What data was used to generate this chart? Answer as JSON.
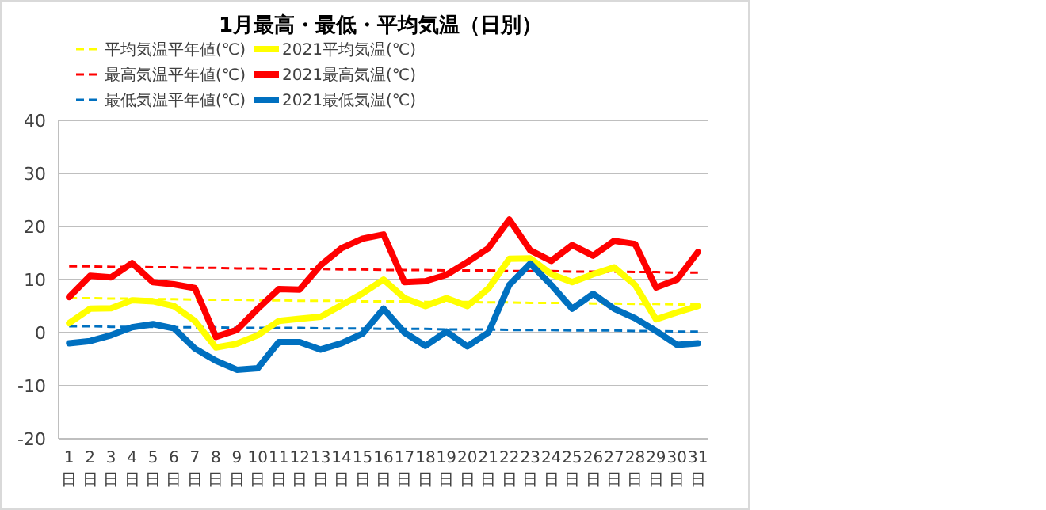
{
  "chart_data": {
    "type": "line",
    "title": "1月最高・最低・平均気温（日別）",
    "categories": [
      "1日",
      "2日",
      "3日",
      "4日",
      "5日",
      "6日",
      "7日",
      "8日",
      "9日",
      "10日",
      "11日",
      "12日",
      "13日",
      "14日",
      "15日",
      "16日",
      "17日",
      "18日",
      "19日",
      "20日",
      "21日",
      "22日",
      "23日",
      "24日",
      "25日",
      "26日",
      "27日",
      "28日",
      "29日",
      "30日",
      "31日"
    ],
    "series": [
      {
        "name": "平均気温平年値(℃)",
        "color": "#ffff00",
        "line_style": "dashed",
        "values": [
          6.5,
          6.5,
          6.4,
          6.4,
          6.3,
          6.3,
          6.2,
          6.2,
          6.2,
          6.1,
          6.1,
          6.0,
          6.0,
          6.0,
          5.9,
          5.9,
          5.9,
          5.8,
          5.8,
          5.8,
          5.7,
          5.7,
          5.6,
          5.6,
          5.6,
          5.5,
          5.5,
          5.4,
          5.4,
          5.3,
          5.3
        ]
      },
      {
        "name": "最高気温平年値(℃)",
        "color": "#ff0000",
        "line_style": "dashed",
        "values": [
          12.5,
          12.5,
          12.4,
          12.4,
          12.3,
          12.3,
          12.2,
          12.2,
          12.1,
          12.1,
          12.0,
          12.0,
          12.0,
          11.9,
          11.9,
          11.8,
          11.8,
          11.8,
          11.7,
          11.7,
          11.7,
          11.6,
          11.6,
          11.6,
          11.5,
          11.5,
          11.5,
          11.4,
          11.4,
          11.3,
          11.3
        ]
      },
      {
        "name": "最低気温平年値(℃)",
        "color": "#0070c0",
        "line_style": "dashed",
        "values": [
          1.2,
          1.2,
          1.1,
          1.1,
          1.1,
          1.0,
          1.0,
          1.0,
          0.9,
          0.9,
          0.9,
          0.9,
          0.8,
          0.8,
          0.8,
          0.7,
          0.7,
          0.7,
          0.6,
          0.6,
          0.6,
          0.5,
          0.5,
          0.5,
          0.4,
          0.4,
          0.4,
          0.3,
          0.3,
          0.2,
          0.2
        ]
      },
      {
        "name": "2021平均気温(℃)",
        "color": "#ffff00",
        "line_style": "solid",
        "values": [
          1.8,
          4.5,
          4.6,
          6.1,
          5.9,
          5.0,
          2.2,
          -2.8,
          -2.1,
          -0.5,
          2.2,
          2.6,
          3.0,
          5.2,
          7.4,
          10.0,
          6.5,
          5.0,
          6.5,
          5.0,
          8.3,
          13.9,
          14.0,
          11.0,
          9.5,
          11.0,
          12.3,
          9.0,
          2.5,
          3.8,
          5.0
        ]
      },
      {
        "name": "2021最高気温(℃)",
        "color": "#ff0000",
        "line_style": "solid",
        "values": [
          6.7,
          10.7,
          10.4,
          13.1,
          9.5,
          9.1,
          8.4,
          -0.8,
          0.5,
          4.5,
          8.2,
          8.1,
          12.7,
          15.9,
          17.7,
          18.5,
          9.5,
          9.7,
          10.9,
          13.3,
          15.9,
          21.3,
          15.5,
          13.5,
          16.5,
          14.5,
          17.3,
          16.7,
          8.5,
          10.0,
          15.2
        ]
      },
      {
        "name": "2021最低気温(℃)",
        "color": "#0070c0",
        "line_style": "solid",
        "values": [
          -2.0,
          -1.6,
          -0.5,
          1.0,
          1.6,
          0.8,
          -3.0,
          -5.3,
          -7.0,
          -6.7,
          -1.8,
          -1.8,
          -3.2,
          -2.0,
          -0.2,
          4.5,
          0.0,
          -2.5,
          0.2,
          -2.6,
          0.0,
          9.0,
          13.0,
          9.0,
          4.5,
          7.3,
          4.5,
          2.7,
          0.3,
          -2.3,
          -2.0
        ]
      }
    ],
    "ylim": [
      -20,
      40
    ],
    "yticks": [
      -20,
      -10,
      0,
      10,
      20,
      30,
      40
    ],
    "grid": "y",
    "legend": "top left",
    "marker": "none"
  }
}
